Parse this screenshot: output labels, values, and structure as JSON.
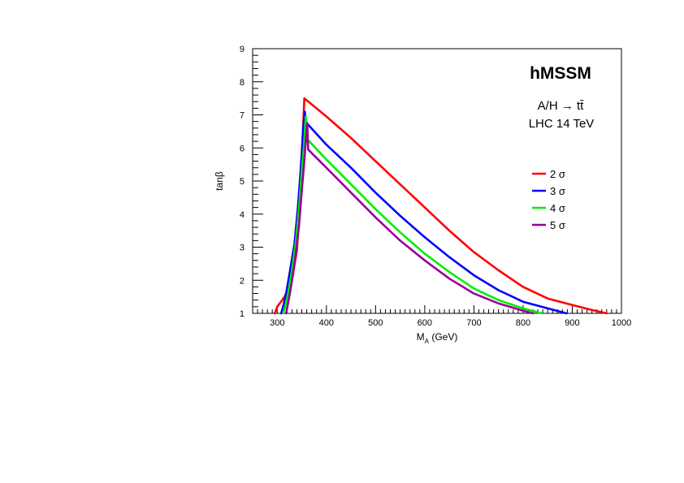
{
  "chart_data": {
    "type": "line",
    "title": "hMSSM",
    "annotations": [
      "A/H → tt̄",
      "LHC 14 TeV"
    ],
    "xlabel": "M_A (GeV)",
    "xlabel_main": "M",
    "xlabel_sub": "A",
    "xlabel_unit": " (GeV)",
    "ylabel": "tanβ",
    "xlim": [
      250,
      1000
    ],
    "ylim": [
      1,
      9
    ],
    "xticks": [
      300,
      400,
      500,
      600,
      700,
      800,
      900,
      1000
    ],
    "yticks": [
      1,
      2,
      3,
      4,
      5,
      6,
      7,
      8,
      9
    ],
    "legend_position": "right",
    "series": [
      {
        "name": "2 σ",
        "color": "#ff0000",
        "x": [
          295,
          300,
          315,
          330,
          340,
          345,
          350,
          355,
          355,
          400,
          450,
          500,
          550,
          600,
          650,
          700,
          750,
          800,
          850,
          900,
          940,
          970
        ],
        "y": [
          1.0,
          1.2,
          1.5,
          2.0,
          2.9,
          4.1,
          5.7,
          7.45,
          7.5,
          6.95,
          6.3,
          5.6,
          4.9,
          4.2,
          3.5,
          2.85,
          2.3,
          1.8,
          1.45,
          1.25,
          1.1,
          1.0
        ]
      },
      {
        "name": "3 σ",
        "color": "#0000ff",
        "x": [
          308,
          312,
          318,
          325,
          335,
          342,
          348,
          353,
          356,
          358,
          360,
          400,
          450,
          500,
          550,
          600,
          650,
          700,
          750,
          800,
          850,
          888
        ],
        "y": [
          1.0,
          1.2,
          1.6,
          2.2,
          3.1,
          4.2,
          5.4,
          6.6,
          7.1,
          6.85,
          6.75,
          6.1,
          5.4,
          4.65,
          3.95,
          3.3,
          2.7,
          2.15,
          1.7,
          1.35,
          1.15,
          1.0
        ]
      },
      {
        "name": "4 σ",
        "color": "#00ee00",
        "x": [
          312,
          316,
          322,
          330,
          338,
          345,
          350,
          355,
          358,
          360,
          362,
          400,
          450,
          500,
          550,
          600,
          650,
          700,
          750,
          800,
          838
        ],
        "y": [
          1.0,
          1.2,
          1.6,
          2.3,
          3.2,
          4.3,
          5.3,
          6.2,
          6.95,
          6.6,
          6.25,
          5.65,
          4.9,
          4.15,
          3.45,
          2.8,
          2.25,
          1.75,
          1.4,
          1.15,
          1.0
        ]
      },
      {
        "name": "5 σ",
        "color": "#990099",
        "x": [
          318,
          322,
          328,
          336,
          344,
          350,
          355,
          359,
          361,
          363,
          400,
          450,
          500,
          550,
          600,
          650,
          700,
          750,
          800,
          820
        ],
        "y": [
          1.0,
          1.3,
          1.8,
          2.6,
          3.6,
          4.7,
          5.6,
          6.4,
          6.75,
          5.95,
          5.4,
          4.65,
          3.9,
          3.2,
          2.6,
          2.05,
          1.6,
          1.3,
          1.08,
          1.0
        ]
      }
    ]
  }
}
